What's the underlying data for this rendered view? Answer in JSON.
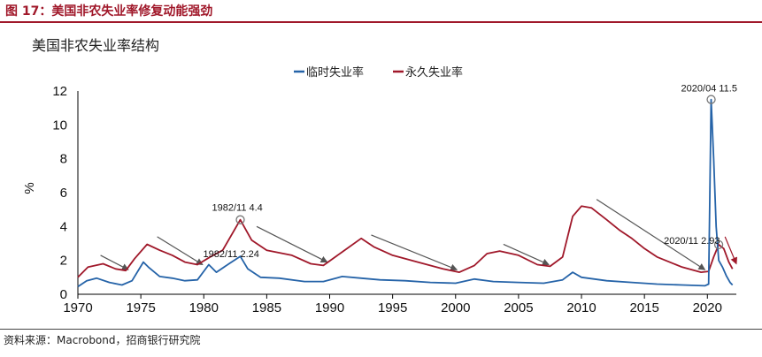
{
  "header": {
    "figure_title": "图 17：美国非农失业率修复动能强劲",
    "chart_title": "美国非农失业率结构"
  },
  "source": "资料来源：Macrobond，招商银行研究院",
  "colors": {
    "temporary": "#2563a8",
    "permanent": "#a0182a",
    "accent": "#a0182a",
    "arrow": "#555555"
  },
  "chart_data": {
    "type": "line",
    "title": "美国非农失业率结构",
    "ylabel": "%",
    "xlim": [
      1970,
      2022.3
    ],
    "ylim": [
      0,
      12
    ],
    "x_ticks": [
      1970,
      1975,
      1980,
      1985,
      1990,
      1995,
      2000,
      2005,
      2010,
      2015,
      2020
    ],
    "y_ticks": [
      0,
      2,
      4,
      6,
      8,
      10,
      12
    ],
    "legend": "top-center",
    "series": [
      {
        "name": "临时失业率",
        "color": "#2563a8",
        "points": [
          [
            1970.0,
            0.45
          ],
          [
            1970.7,
            0.8
          ],
          [
            1971.5,
            0.95
          ],
          [
            1972.5,
            0.7
          ],
          [
            1973.5,
            0.55
          ],
          [
            1974.3,
            0.8
          ],
          [
            1975.2,
            1.9
          ],
          [
            1975.6,
            1.6
          ],
          [
            1976.5,
            1.05
          ],
          [
            1977.5,
            0.95
          ],
          [
            1978.5,
            0.8
          ],
          [
            1979.5,
            0.85
          ],
          [
            1980.4,
            1.75
          ],
          [
            1981.0,
            1.3
          ],
          [
            1982.0,
            1.8
          ],
          [
            1982.9,
            2.24
          ],
          [
            1983.5,
            1.5
          ],
          [
            1984.5,
            1.0
          ],
          [
            1986.0,
            0.95
          ],
          [
            1988.0,
            0.75
          ],
          [
            1989.5,
            0.75
          ],
          [
            1991.0,
            1.05
          ],
          [
            1992.5,
            0.95
          ],
          [
            1994.0,
            0.85
          ],
          [
            1996.0,
            0.8
          ],
          [
            1998.0,
            0.7
          ],
          [
            2000.0,
            0.65
          ],
          [
            2001.5,
            0.9
          ],
          [
            2003.0,
            0.75
          ],
          [
            2005.0,
            0.7
          ],
          [
            2007.0,
            0.65
          ],
          [
            2008.5,
            0.85
          ],
          [
            2009.3,
            1.3
          ],
          [
            2010.0,
            1.0
          ],
          [
            2012.0,
            0.8
          ],
          [
            2014.0,
            0.7
          ],
          [
            2016.0,
            0.6
          ],
          [
            2018.0,
            0.55
          ],
          [
            2019.8,
            0.5
          ],
          [
            2020.1,
            0.6
          ],
          [
            2020.3,
            11.5
          ],
          [
            2020.5,
            8.0
          ],
          [
            2020.7,
            4.0
          ],
          [
            2020.9,
            2.0
          ],
          [
            2021.2,
            1.6
          ],
          [
            2021.5,
            1.1
          ],
          [
            2021.8,
            0.7
          ],
          [
            2022.0,
            0.55
          ]
        ]
      },
      {
        "name": "永久失业率",
        "color": "#a0182a",
        "points": [
          [
            1970.0,
            1.0
          ],
          [
            1970.8,
            1.6
          ],
          [
            1972.0,
            1.8
          ],
          [
            1973.0,
            1.5
          ],
          [
            1973.8,
            1.4
          ],
          [
            1974.5,
            2.1
          ],
          [
            1975.5,
            2.95
          ],
          [
            1976.5,
            2.6
          ],
          [
            1977.5,
            2.3
          ],
          [
            1978.5,
            1.9
          ],
          [
            1979.5,
            1.75
          ],
          [
            1980.5,
            2.2
          ],
          [
            1981.5,
            2.6
          ],
          [
            1982.9,
            4.4
          ],
          [
            1983.8,
            3.2
          ],
          [
            1985.0,
            2.6
          ],
          [
            1987.0,
            2.3
          ],
          [
            1988.5,
            1.8
          ],
          [
            1989.5,
            1.7
          ],
          [
            1991.0,
            2.5
          ],
          [
            1992.5,
            3.3
          ],
          [
            1993.5,
            2.8
          ],
          [
            1995.0,
            2.3
          ],
          [
            1997.0,
            1.9
          ],
          [
            1999.0,
            1.5
          ],
          [
            2000.3,
            1.3
          ],
          [
            2001.5,
            1.7
          ],
          [
            2002.5,
            2.4
          ],
          [
            2003.5,
            2.55
          ],
          [
            2005.0,
            2.3
          ],
          [
            2006.5,
            1.75
          ],
          [
            2007.5,
            1.65
          ],
          [
            2008.5,
            2.2
          ],
          [
            2009.3,
            4.6
          ],
          [
            2010.0,
            5.2
          ],
          [
            2010.8,
            5.1
          ],
          [
            2012.0,
            4.4
          ],
          [
            2013.0,
            3.8
          ],
          [
            2014.0,
            3.3
          ],
          [
            2015.0,
            2.7
          ],
          [
            2016.0,
            2.2
          ],
          [
            2017.0,
            1.9
          ],
          [
            2018.0,
            1.6
          ],
          [
            2019.5,
            1.3
          ],
          [
            2020.1,
            1.35
          ],
          [
            2020.5,
            2.2
          ],
          [
            2020.9,
            2.93
          ],
          [
            2021.3,
            2.7
          ],
          [
            2021.7,
            1.9
          ],
          [
            2022.0,
            1.5
          ]
        ]
      }
    ],
    "annotations": [
      {
        "text": "1982/11 4.4",
        "x": 1982.9,
        "y": 4.4
      },
      {
        "text": "1982/11 2.24",
        "x": 1982.9,
        "y": 2.24
      },
      {
        "text": "2020/04 11.5",
        "x": 2020.3,
        "y": 11.5
      },
      {
        "text": "2020/11 2.93",
        "x": 2020.9,
        "y": 2.93
      }
    ],
    "trend_arrows": [
      {
        "from": [
          1971.8,
          2.3
        ],
        "to": [
          1974.0,
          1.45
        ]
      },
      {
        "from": [
          1976.3,
          3.4
        ],
        "to": [
          1979.9,
          1.75
        ]
      },
      {
        "from": [
          1984.2,
          4.0
        ],
        "to": [
          1989.8,
          1.9
        ]
      },
      {
        "from": [
          1993.3,
          3.5
        ],
        "to": [
          2000.1,
          1.45
        ]
      },
      {
        "from": [
          2003.8,
          2.95
        ],
        "to": [
          2007.4,
          1.75
        ]
      },
      {
        "from": [
          2011.2,
          5.6
        ],
        "to": [
          2019.8,
          1.45
        ]
      },
      {
        "from": [
          2021.4,
          3.4
        ],
        "to": [
          2022.3,
          1.8
        ]
      }
    ]
  }
}
